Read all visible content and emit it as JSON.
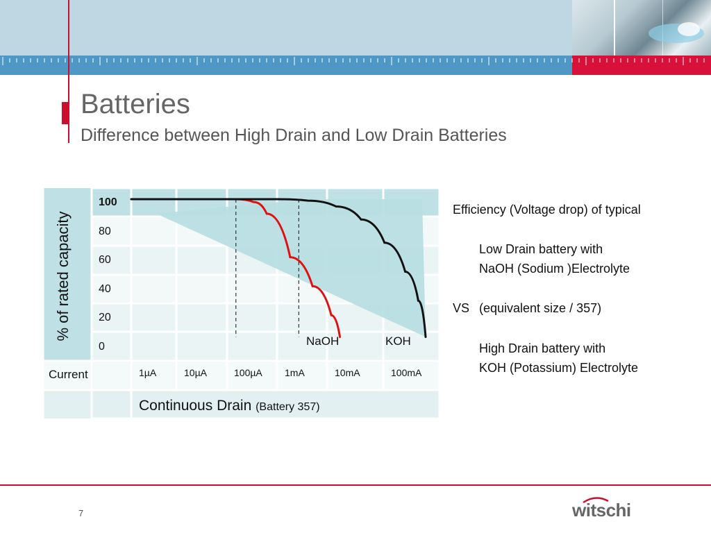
{
  "header": {
    "accent_color": "#c8102e",
    "banner_color": "#bfd6e3",
    "strip_color": "#4f97c4"
  },
  "slide": {
    "title": "Batteries",
    "subtitle": "Difference between High Drain and Low Drain Batteries",
    "page_number": "7",
    "logo": "witschi"
  },
  "description": {
    "line1": "Efficiency (Voltage drop) of typical",
    "line2": "Low Drain battery with",
    "line3": "NaOH (Sodium )Electrolyte",
    "vs": "VS",
    "line4": "(equivalent size / 357)",
    "line5": "High Drain battery with",
    "line6": "KOH (Potassium) Electrolyte"
  },
  "chart_data": {
    "type": "line",
    "ylabel": "% of rated capacity",
    "y_ticks": [
      "100",
      "80",
      "60",
      "40",
      "20",
      "0"
    ],
    "x_row_label": "Current",
    "x_ticks": [
      "1µA",
      "10µA",
      "100µA",
      "1mA",
      "10mA",
      "100mA"
    ],
    "xlabel_main": "Continuous Drain",
    "xlabel_note": "(Battery 357)",
    "ylim": [
      0,
      100
    ],
    "x_scale": "log",
    "series": [
      {
        "name": "NaOH",
        "color": "#e01010",
        "points": [
          [
            1,
            100
          ],
          [
            60,
            100
          ],
          [
            120,
            98
          ],
          [
            200,
            90
          ],
          [
            500,
            60
          ],
          [
            1200,
            40
          ],
          [
            2500,
            20
          ],
          [
            3500,
            5
          ]
        ]
      },
      {
        "name": "KOH",
        "color": "#111111",
        "points": [
          [
            1,
            100
          ],
          [
            300,
            100
          ],
          [
            1000,
            99
          ],
          [
            3000,
            95
          ],
          [
            8000,
            86
          ],
          [
            20000,
            70
          ],
          [
            45000,
            50
          ],
          [
            75000,
            30
          ],
          [
            100000,
            5
          ]
        ]
      }
    ]
  }
}
